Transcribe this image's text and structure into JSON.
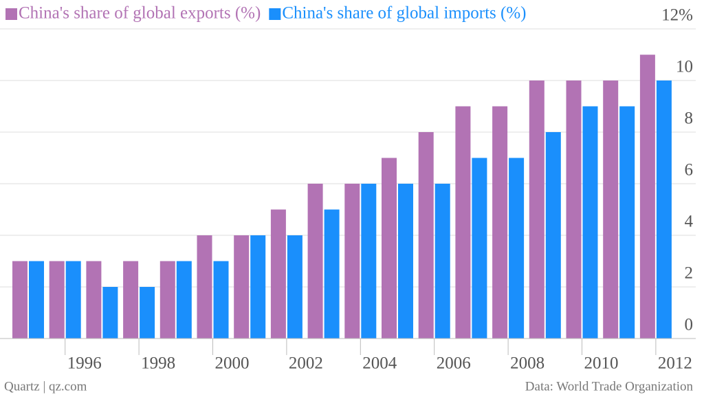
{
  "chart_data": {
    "type": "bar",
    "categories": [
      null,
      "1996",
      null,
      "1998",
      null,
      "2000",
      null,
      "2002",
      null,
      "2004",
      null,
      "2006",
      null,
      "2008",
      null,
      "2010",
      null,
      "2012"
    ],
    "series": [
      {
        "name": "China's share of global exports (%)",
        "color": "#b273b4",
        "values": [
          3,
          3,
          3,
          3,
          3,
          4,
          4,
          5,
          6,
          6,
          7,
          8,
          9,
          9,
          10,
          10,
          10,
          11
        ]
      },
      {
        "name": "China's share of global imports (%)",
        "color": "#1a8ffc",
        "values": [
          3,
          3,
          2,
          2,
          3,
          3,
          4,
          4,
          5,
          6,
          6,
          6,
          7,
          7,
          8,
          9,
          9,
          10
        ]
      }
    ],
    "ylim": [
      0,
      12
    ],
    "yticks": [
      0,
      2,
      4,
      6,
      8,
      10,
      {
        "value": 12,
        "label": "12%"
      }
    ],
    "grid": true,
    "source": "Data: World Trade Organization",
    "credit": "Quartz | qz.com"
  }
}
